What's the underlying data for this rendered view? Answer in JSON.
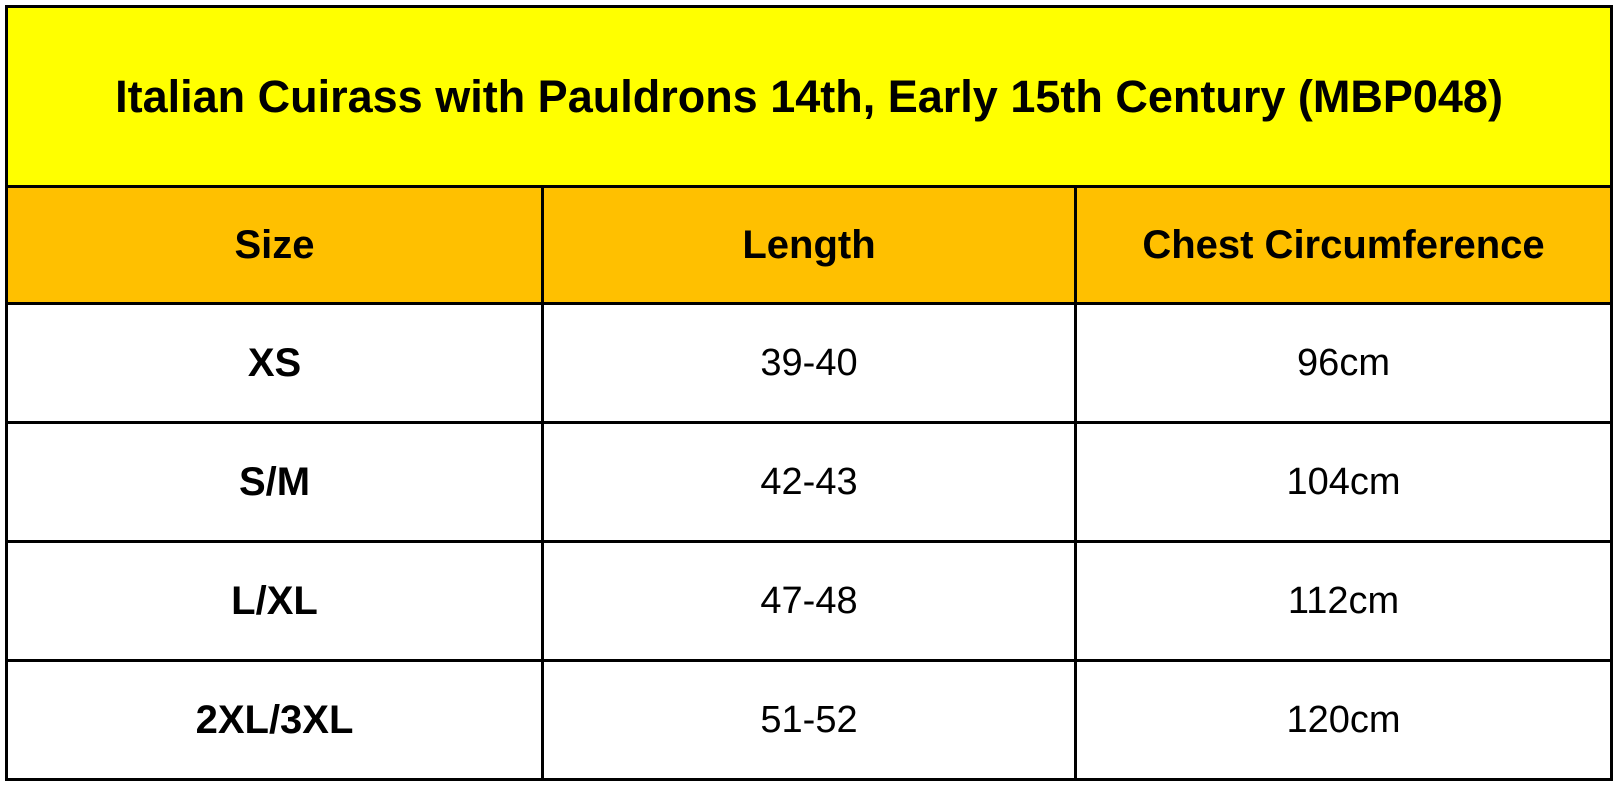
{
  "table": {
    "title": "Italian Cuirass with Pauldrons 14th, Early 15th Century (MBP048)",
    "header": [
      "Size",
      "Length",
      "Chest Circumference"
    ],
    "rows": [
      [
        "XS",
        "39-40",
        "96cm"
      ],
      [
        "S/M",
        "42-43",
        "104cm"
      ],
      [
        "L/XL",
        "47-48",
        "112cm"
      ],
      [
        "2XL/3XL",
        "51-52",
        "120cm"
      ]
    ]
  }
}
